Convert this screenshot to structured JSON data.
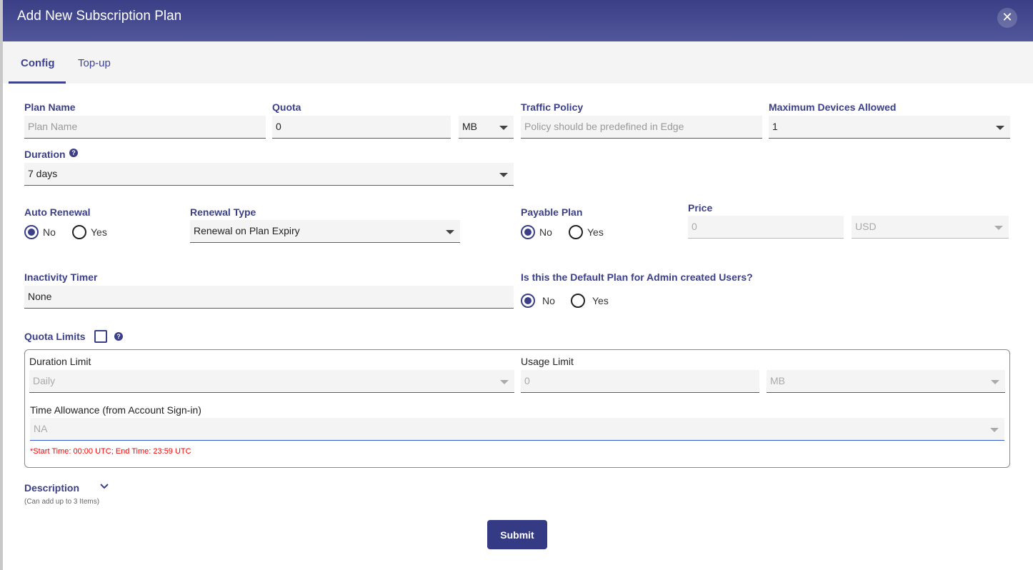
{
  "title": "Add New Subscription Plan",
  "tabs": [
    "Config",
    "Top-up"
  ],
  "plan_name": {
    "label": "Plan Name",
    "placeholder": "Plan Name"
  },
  "quota": {
    "label": "Quota",
    "value": "0",
    "unit": "MB"
  },
  "traffic_policy": {
    "label": "Traffic Policy",
    "placeholder": "Policy should be predefined in Edge"
  },
  "max_devices": {
    "label": "Maximum Devices Allowed",
    "value": "1"
  },
  "duration": {
    "label": "Duration",
    "value": "7 days"
  },
  "auto_renewal": {
    "label": "Auto Renewal",
    "options": [
      "No",
      "Yes"
    ],
    "selected": "No"
  },
  "renewal_type": {
    "label": "Renewal Type",
    "value": "Renewal on Plan Expiry"
  },
  "payable_plan": {
    "label": "Payable Plan",
    "options": [
      "No",
      "Yes"
    ],
    "selected": "No"
  },
  "price": {
    "label": "Price",
    "value": "0",
    "currency": "USD"
  },
  "inactivity_timer": {
    "label": "Inactivity Timer",
    "value": "None"
  },
  "default_plan": {
    "label": "Is this the Default Plan for Admin created Users?",
    "options": [
      "No",
      "Yes"
    ],
    "selected": "No"
  },
  "quota_limits": {
    "label": "Quota Limits",
    "checked": false,
    "duration_limit": {
      "label": "Duration Limit",
      "value": "Daily"
    },
    "usage_limit": {
      "label": "Usage Limit",
      "value": "0",
      "unit": "MB"
    },
    "time_allowance": {
      "label": "Time Allowance (from Account Sign-in)",
      "value": "NA"
    },
    "note": "*Start Time: 00:00 UTC; End Time: 23:59 UTC"
  },
  "description": {
    "label": "Description",
    "hint": "(Can add up to 3 Items)"
  },
  "submit_label": "Submit",
  "colors": {
    "header": "#3a3f86",
    "accent": "#3b3f88",
    "underline": "#3558cf",
    "note": "#ff0000"
  }
}
